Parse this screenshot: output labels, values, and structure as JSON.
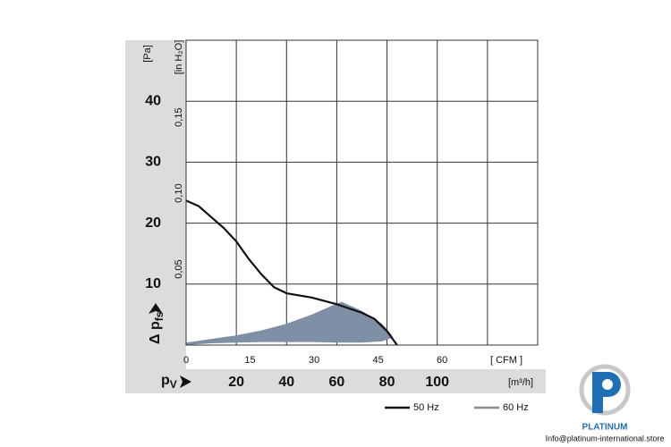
{
  "chart_data": {
    "type": "line",
    "y_unit": "[Pa]",
    "y2_unit": "[in H₂O]",
    "x_unit": "[m³/h]",
    "x2_unit": "[ CFM ]",
    "y_symbol": "Δ p",
    "y_symbol_sub": "fs",
    "x_symbol": "p",
    "x_symbol_sub": "V",
    "xlim": [
      0,
      140
    ],
    "xticks": [
      20,
      40,
      60,
      80,
      100
    ],
    "xgrid": [
      0,
      20,
      40,
      60,
      80,
      100,
      120,
      140
    ],
    "x2lim": [
      0,
      82.4
    ],
    "x2ticks": [
      0,
      15,
      30,
      45,
      60
    ],
    "ylim": [
      0,
      50
    ],
    "yticks": [
      10,
      20,
      30,
      40
    ],
    "ygrid": [
      0,
      10,
      20,
      30,
      40,
      50
    ],
    "y2lim": [
      0,
      0.2007
    ],
    "y2ticks": [
      {
        "value": 0.05,
        "label": "0,05"
      },
      {
        "value": 0.1,
        "label": "0,10"
      },
      {
        "value": 0.15,
        "label": "0,15"
      }
    ],
    "series": [
      {
        "name": "50 Hz",
        "color": "#111111",
        "style": "line",
        "x": [
          0,
          5,
          10,
          15,
          20,
          25,
          30,
          35,
          40,
          50,
          60,
          70,
          75,
          80,
          84
        ],
        "values": [
          23.7,
          22.8,
          21,
          19.2,
          17,
          14.1,
          11.6,
          9.5,
          8.5,
          7.8,
          6.7,
          5.3,
          4.3,
          2.3,
          0
        ]
      },
      {
        "name": "60 Hz",
        "color": "#7f8fa6",
        "legend_color": "#8c8c8c",
        "style": "band",
        "x": [
          0,
          10,
          20,
          30,
          40,
          50,
          60,
          62,
          70,
          78,
          82
        ],
        "values": [
          0.4,
          1,
          1.6,
          2.4,
          3.5,
          5,
          6.8,
          7.1,
          5.6,
          3.5,
          1.6
        ],
        "low_values": [
          0,
          0.3,
          0.4,
          0.5,
          0.5,
          0.5,
          0.4,
          0.4,
          0.4,
          0.6,
          1.2
        ]
      }
    ]
  },
  "watermark": {
    "brand": "PLATINUM",
    "email": "Info@platinum-international.store"
  }
}
